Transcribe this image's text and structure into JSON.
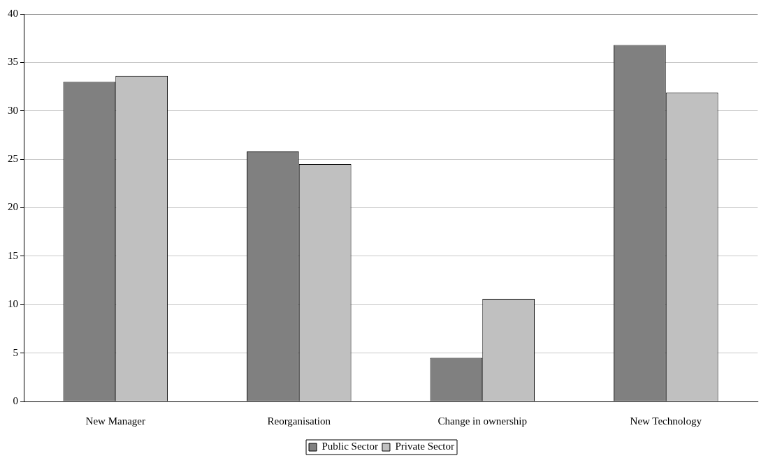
{
  "chart_data": {
    "type": "bar",
    "categories": [
      "New Manager",
      "Reorganisation",
      "Change in ownership",
      "New Technology"
    ],
    "series": [
      {
        "name": "Public Sector",
        "color": "#808080",
        "values": [
          33.0,
          25.8,
          4.5,
          36.8
        ]
      },
      {
        "name": "Private Sector",
        "color": "#c0c0c0",
        "values": [
          33.6,
          24.5,
          10.6,
          31.9
        ]
      }
    ],
    "ylim": [
      0,
      40
    ],
    "yticks": [
      0,
      5,
      10,
      15,
      20,
      25,
      30,
      35,
      40
    ],
    "grid": "y",
    "legend": "bottom"
  }
}
